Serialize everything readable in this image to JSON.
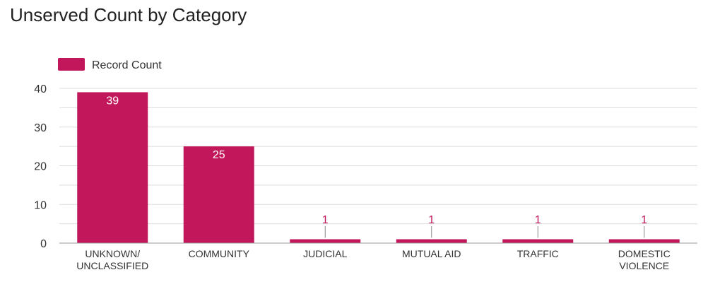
{
  "header": {
    "title": "Unserved Count by Category"
  },
  "chart_data": {
    "type": "bar",
    "title": "Unserved Count by Category",
    "xlabel": "",
    "ylabel": "",
    "categories": [
      [
        "UNKNOWN/",
        "UNCLASSIFIED"
      ],
      [
        "COMMUNITY"
      ],
      [
        "JUDICIAL"
      ],
      [
        "MUTUAL AID"
      ],
      [
        "TRAFFIC"
      ],
      [
        "DOMESTIC",
        "VIOLENCE"
      ]
    ],
    "series": [
      {
        "name": "Record Count",
        "values": [
          39,
          25,
          1,
          1,
          1,
          1
        ]
      }
    ],
    "ylim": [
      0,
      40
    ],
    "yticks": [
      0,
      10,
      20,
      30,
      40
    ],
    "grid": true,
    "legend_position": "top-left",
    "colors": {
      "bar": "#c2185b",
      "inside_label": "#ffffff",
      "outside_label": "#c2185b",
      "grid": "#dddddd",
      "axis": "#999999"
    }
  }
}
